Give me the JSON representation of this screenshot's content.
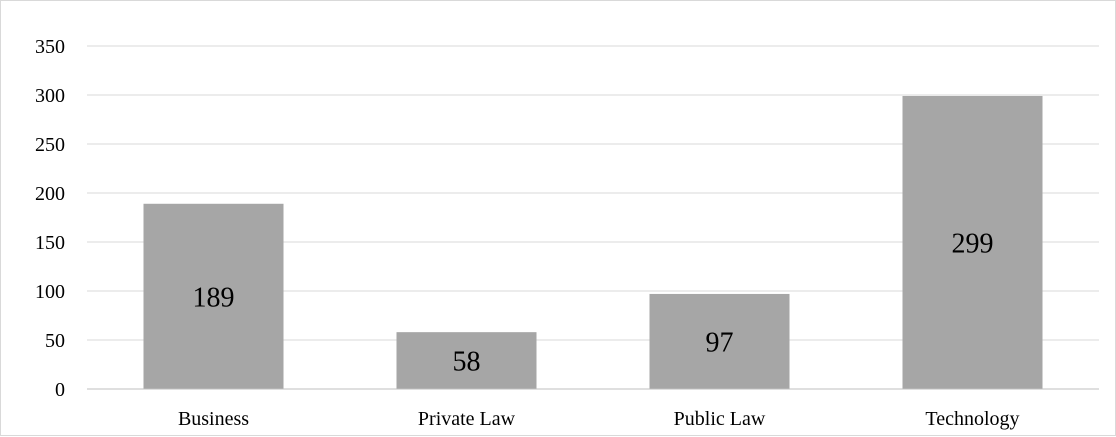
{
  "chart_data": {
    "type": "bar",
    "categories": [
      "Business",
      "Private Law",
      "Public Law",
      "Technology"
    ],
    "values": [
      189,
      58,
      97,
      299
    ],
    "data_labels": [
      "189",
      "58",
      "97",
      "299"
    ],
    "title": "",
    "xlabel": "",
    "ylabel": "",
    "ylim": [
      0,
      350
    ],
    "yticks": [
      0,
      50,
      100,
      150,
      200,
      250,
      300,
      350
    ],
    "ytick_labels": [
      "0",
      "50",
      "100",
      "150",
      "200",
      "250",
      "300",
      "350"
    ],
    "grid": true,
    "legend": "none",
    "colors": {
      "bar": "#a6a6a6",
      "grid": "#d9d9d9",
      "axis": "#bfbfbf",
      "text": "#000000"
    }
  }
}
